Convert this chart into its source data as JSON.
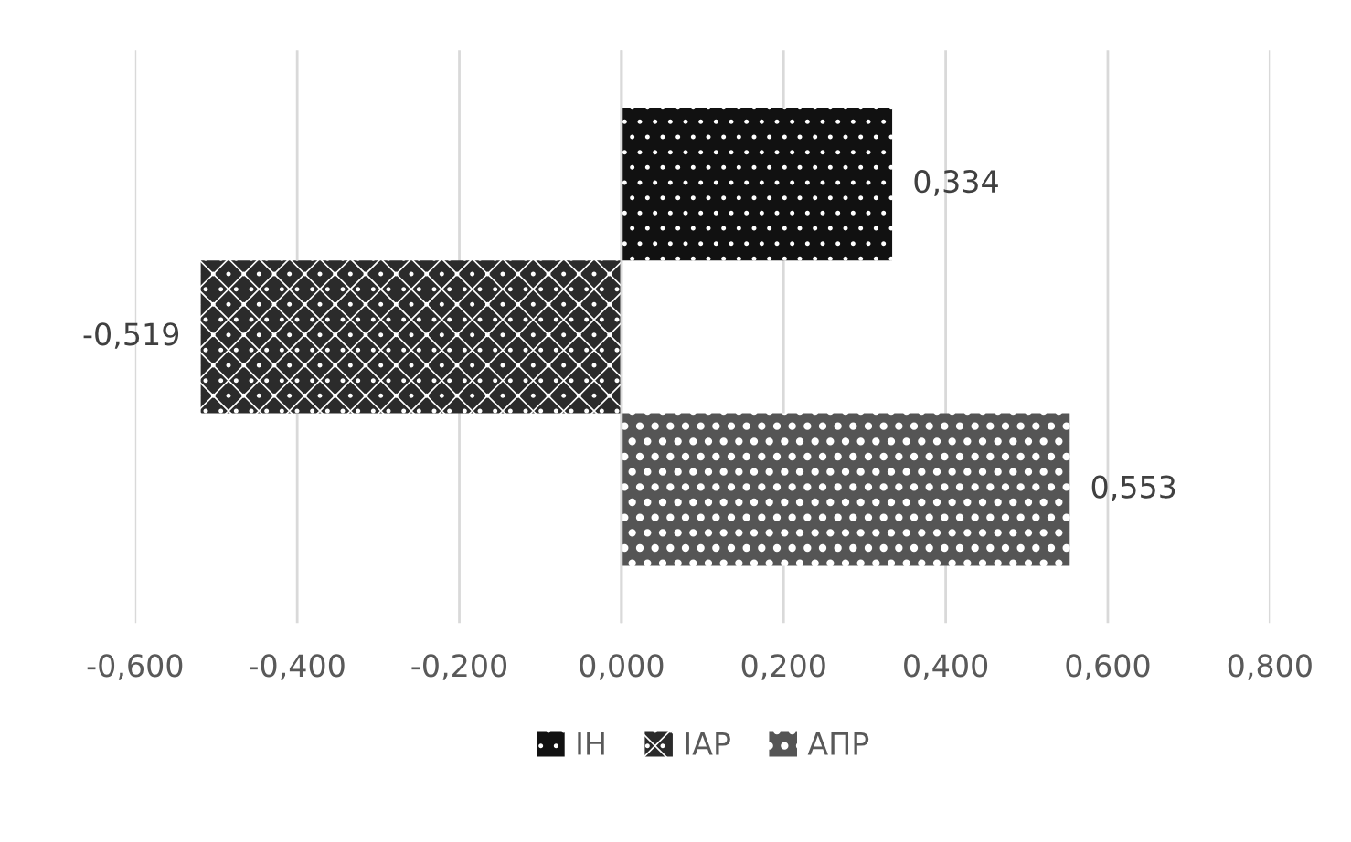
{
  "chart_data": {
    "type": "bar",
    "orientation": "horizontal",
    "categories": [
      null
    ],
    "series": [
      {
        "name": "IH",
        "color": "#111111",
        "values": [
          0.334
        ],
        "value_labels": [
          "0,334"
        ]
      },
      {
        "name": "IAP",
        "color": "#2b2b2b",
        "values": [
          -0.519
        ],
        "value_labels": [
          "-0,519"
        ]
      },
      {
        "name": "АПР",
        "color": "#555555",
        "values": [
          0.553
        ],
        "value_labels": [
          "0,553"
        ]
      }
    ],
    "xlim": [
      -0.6,
      0.8
    ],
    "xticks": [
      {
        "value": -0.6,
        "label": "-0,600"
      },
      {
        "value": -0.4,
        "label": "-0,400"
      },
      {
        "value": -0.2,
        "label": "-0,200"
      },
      {
        "value": 0,
        "label": "0,000"
      },
      {
        "value": 0.2,
        "label": "0,200"
      },
      {
        "value": 0.4,
        "label": "0,400"
      },
      {
        "value": 0.6,
        "label": "0,600"
      },
      {
        "value": 0.8,
        "label": "0,800"
      }
    ],
    "grid": "x",
    "legend": "bottom"
  }
}
